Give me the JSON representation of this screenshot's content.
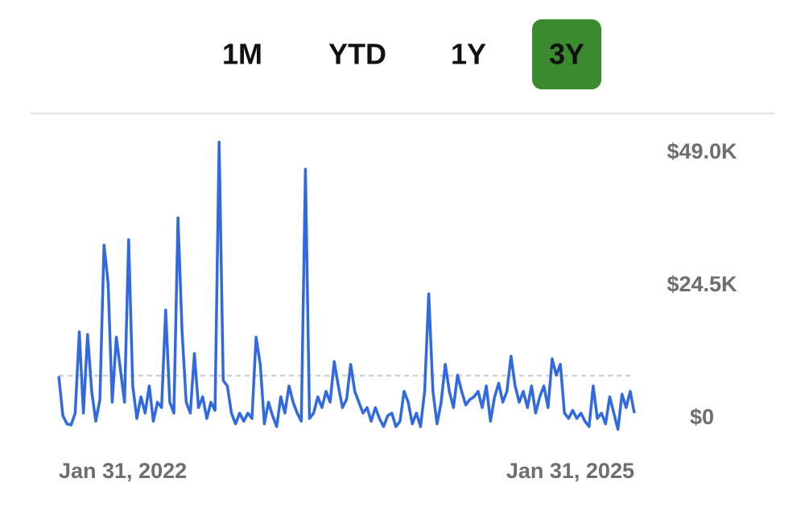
{
  "tabs": [
    "1M",
    "YTD",
    "1Y",
    "3Y"
  ],
  "selected_tab": 3,
  "chart_data": {
    "type": "line",
    "categories": [
      "Jan 31, 2022",
      null,
      null,
      null,
      null,
      null,
      null,
      null,
      null,
      null,
      null,
      null,
      null,
      null,
      null,
      null,
      null,
      null,
      null,
      null,
      null,
      null,
      null,
      null,
      null,
      null,
      null,
      null,
      null,
      null,
      null,
      null,
      null,
      null,
      null,
      null,
      null,
      null,
      null,
      null,
      null,
      null,
      null,
      null,
      null,
      null,
      null,
      null,
      null,
      null,
      null,
      null,
      null,
      null,
      null,
      null,
      null,
      null,
      null,
      null,
      null,
      null,
      null,
      null,
      null,
      null,
      null,
      null,
      null,
      null,
      null,
      null,
      null,
      null,
      null,
      null,
      null,
      null,
      null,
      null,
      null,
      null,
      null,
      null,
      null,
      null,
      null,
      null,
      null,
      null,
      null,
      null,
      null,
      null,
      null,
      null,
      null,
      null,
      null,
      null,
      null,
      null,
      null,
      null,
      null,
      null,
      null,
      null,
      null,
      null,
      null,
      null,
      null,
      null,
      null,
      null,
      null,
      null,
      null,
      null,
      null,
      null,
      null,
      null,
      null,
      null,
      null,
      null,
      null,
      null,
      null,
      null,
      null,
      null,
      null,
      null,
      null,
      null,
      null,
      null,
      "Jan 31, 2025"
    ],
    "values": [
      7800,
      500,
      -1000,
      -1200,
      1000,
      16000,
      1000,
      15500,
      5000,
      -500,
      3500,
      32000,
      25000,
      3000,
      15000,
      9000,
      3000,
      33000,
      6000,
      0,
      4000,
      1000,
      6000,
      -500,
      3000,
      2000,
      20000,
      3000,
      1000,
      37000,
      16000,
      3000,
      1000,
      12000,
      2000,
      4000,
      0,
      3000,
      1500,
      51000,
      7000,
      6000,
      1000,
      -1000,
      1000,
      -500,
      1000,
      0,
      15000,
      10000,
      -1000,
      3000,
      500,
      -1500,
      4000,
      1000,
      6000,
      3000,
      1000,
      -500,
      46000,
      0,
      1000,
      4000,
      2000,
      5000,
      3000,
      10500,
      6000,
      2000,
      3500,
      10000,
      5000,
      3000,
      1000,
      2000,
      -500,
      2000,
      0,
      -1500,
      500,
      1000,
      -1500,
      -500,
      5000,
      3000,
      -1000,
      1000,
      -1500,
      5000,
      23000,
      5000,
      -1000,
      3000,
      10000,
      5000,
      2000,
      8000,
      5000,
      2500,
      3500,
      4000,
      5000,
      2000,
      6000,
      -500,
      4000,
      6500,
      3000,
      5000,
      11500,
      6000,
      3000,
      5000,
      2000,
      6000,
      1000,
      4000,
      6000,
      2000,
      11000,
      8000,
      10000,
      1000,
      0,
      1500,
      0,
      1000,
      -500,
      -1500,
      6000,
      0,
      1000,
      -1000,
      4000,
      1000,
      -2000,
      4500,
      2000,
      5000,
      1000
    ],
    "color": "#3169e0",
    "reference_value": 7900,
    "reference_color": "#c8c8d0",
    "ylim": [
      -3000,
      53000
    ],
    "yticks": [
      {
        "value": 0,
        "label": "$0"
      },
      {
        "value": 24500,
        "label": "$24.5K"
      },
      {
        "value": 49000,
        "label": "$49.0K"
      }
    ],
    "grid": false
  }
}
